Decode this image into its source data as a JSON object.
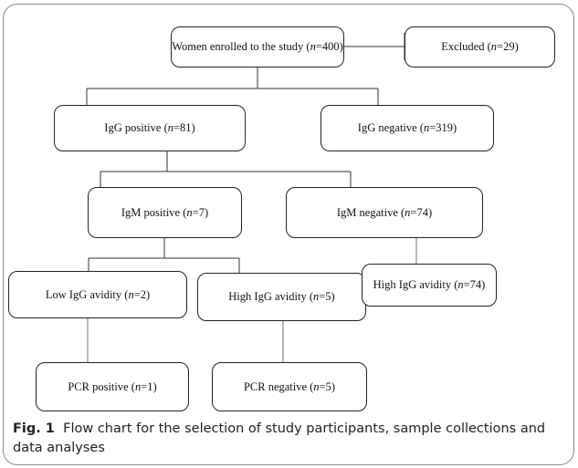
{
  "diagram": {
    "nodes": {
      "enrolled": {
        "label": "Women enrolled to the study (",
        "n": "n",
        "value": "=400)"
      },
      "excluded": {
        "label": "Excluded (",
        "n": "n",
        "value": "=29)"
      },
      "igg_pos": {
        "label": "IgG positive (",
        "n": "n",
        "value": "=81)"
      },
      "igg_neg": {
        "label": "IgG negative (",
        "n": "n",
        "value": "=319)"
      },
      "igm_pos": {
        "label": "IgM positive (",
        "n": "n",
        "value": "=7)"
      },
      "igm_neg": {
        "label": "IgM negative (",
        "n": "n",
        "value": "=74)"
      },
      "low_avidity": {
        "label": "Low IgG avidity (",
        "n": "n",
        "value": "=2)"
      },
      "high_avidity": {
        "label": "High IgG avidity (",
        "n": "n",
        "value": "=5)"
      },
      "high_avidity_74": {
        "label": "High IgG avidity (",
        "n": "n",
        "value": "=74)"
      },
      "pcr_pos": {
        "label": "PCR positive (",
        "n": "n",
        "value": "=1)"
      },
      "pcr_neg": {
        "label": "PCR negative (",
        "n": "n",
        "value": "=5)"
      }
    }
  },
  "caption": {
    "label": "Fig. 1",
    "text": "Flow chart for the selection of study participants, sample collections and data analyses"
  },
  "colors": {
    "box_border": "#222222",
    "connector": "#333333",
    "connector_light": "#8a8a8a",
    "frame": "#8c8c8c"
  }
}
